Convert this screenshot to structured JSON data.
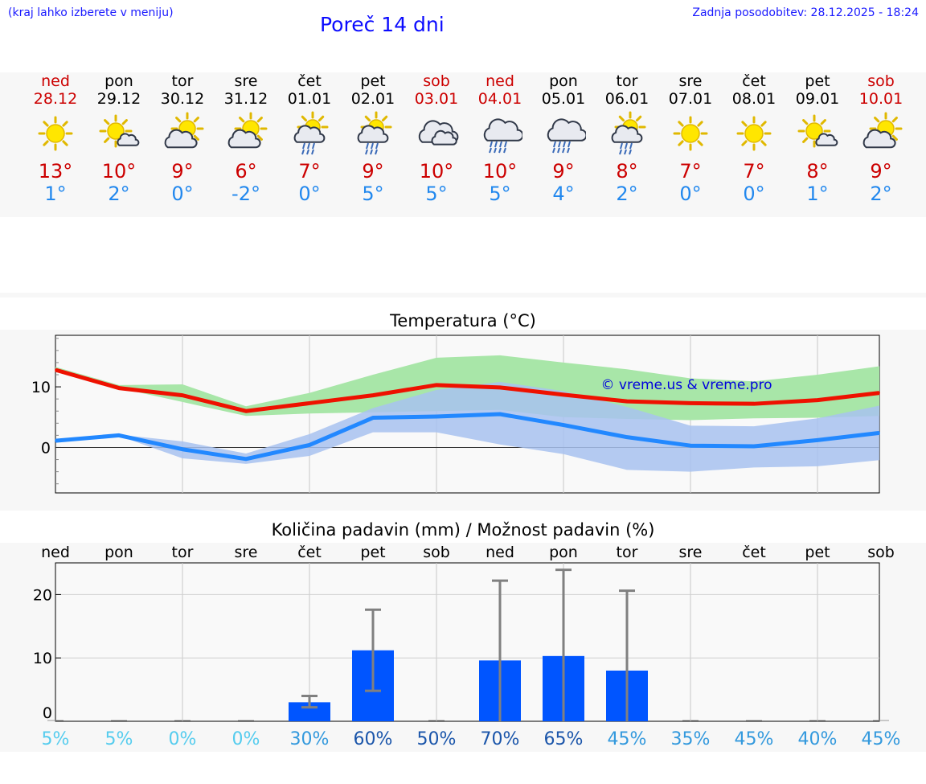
{
  "header": {
    "hint": "(kraj lahko izberete v meniju)",
    "title": "Poreč 14 dni",
    "updated": "Zadnja posodobitev: 28.12.2025 - 18:24"
  },
  "days": [
    {
      "name": "ned",
      "date": "28.12",
      "weekend": true,
      "icon": "sun-icon",
      "max": "13°",
      "min": "1°"
    },
    {
      "name": "pon",
      "date": "29.12",
      "weekend": false,
      "icon": "sun-cloud-icon",
      "max": "10°",
      "min": "2°"
    },
    {
      "name": "tor",
      "date": "30.12",
      "weekend": false,
      "icon": "cloud-sun-icon",
      "max": "9°",
      "min": "0°"
    },
    {
      "name": "sre",
      "date": "31.12",
      "weekend": false,
      "icon": "cloud-sun-icon",
      "max": "6°",
      "min": "-2°"
    },
    {
      "name": "čet",
      "date": "01.01",
      "weekend": false,
      "icon": "sun-cloud-rain-icon",
      "max": "7°",
      "min": "0°"
    },
    {
      "name": "pet",
      "date": "02.01",
      "weekend": false,
      "icon": "sun-cloud-rain-icon",
      "max": "9°",
      "min": "5°"
    },
    {
      "name": "sob",
      "date": "03.01",
      "weekend": true,
      "icon": "cloud-icon",
      "max": "10°",
      "min": "5°"
    },
    {
      "name": "ned",
      "date": "04.01",
      "weekend": true,
      "icon": "cloud-rain-icon",
      "max": "10°",
      "min": "5°"
    },
    {
      "name": "pon",
      "date": "05.01",
      "weekend": false,
      "icon": "cloud-rain-icon",
      "max": "9°",
      "min": "4°"
    },
    {
      "name": "tor",
      "date": "06.01",
      "weekend": false,
      "icon": "sun-cloud-rain-icon",
      "max": "8°",
      "min": "2°"
    },
    {
      "name": "sre",
      "date": "07.01",
      "weekend": false,
      "icon": "sun-icon",
      "max": "7°",
      "min": "0°"
    },
    {
      "name": "čet",
      "date": "08.01",
      "weekend": false,
      "icon": "sun-icon",
      "max": "7°",
      "min": "0°"
    },
    {
      "name": "pet",
      "date": "09.01",
      "weekend": false,
      "icon": "sun-cloud-icon",
      "max": "8°",
      "min": "1°"
    },
    {
      "name": "sob",
      "date": "10.01",
      "weekend": true,
      "icon": "cloud-sun-icon",
      "max": "9°",
      "min": "2°"
    }
  ],
  "colors": {
    "max": "#ee1100",
    "min": "#2288ff",
    "max_band": "#a8e6a8",
    "min_band": "#a8c2f0",
    "bar": "#0055ff",
    "error": "#808080"
  },
  "chart_data": [
    {
      "type": "line",
      "title": "Temperatura (°C)",
      "watermark": "© vreme.us & vreme.pro",
      "ylim": [
        -7.5,
        18.5
      ],
      "yticks": [
        0,
        10
      ],
      "x": [
        0,
        1,
        2,
        3,
        4,
        5,
        6,
        7,
        8,
        9,
        10,
        11,
        12,
        13
      ],
      "series": [
        {
          "name": "max",
          "values": [
            12.8,
            9.8,
            8.6,
            6.0,
            7.3,
            8.6,
            10.3,
            9.9,
            8.7,
            7.6,
            7.3,
            7.2,
            7.8,
            9.0
          ]
        },
        {
          "name": "min",
          "values": [
            1.1,
            2.0,
            -0.3,
            -1.9,
            0.4,
            4.9,
            5.1,
            5.5,
            3.7,
            1.7,
            0.3,
            0.2,
            1.2,
            2.4
          ]
        }
      ],
      "bands": [
        {
          "name": "max-range",
          "low": [
            12.6,
            9.8,
            7.5,
            5.2,
            5.6,
            5.8,
            6.0,
            6.2,
            5.0,
            4.7,
            4.5,
            4.8,
            4.9,
            5.2
          ],
          "high": [
            13.3,
            10.3,
            10.4,
            6.8,
            9.0,
            12.0,
            14.8,
            15.2,
            14.0,
            12.9,
            11.4,
            10.9,
            12.0,
            13.4
          ]
        },
        {
          "name": "min-range",
          "low": [
            0.9,
            1.9,
            -1.8,
            -2.7,
            -1.4,
            2.5,
            2.5,
            0.5,
            -1.1,
            -3.7,
            -4.0,
            -3.3,
            -3.1,
            -2.1
          ],
          "high": [
            1.2,
            2.1,
            1.0,
            -1.0,
            2.2,
            6.5,
            9.5,
            10.8,
            9.3,
            6.7,
            3.6,
            3.5,
            4.8,
            6.9
          ]
        }
      ]
    },
    {
      "type": "bar",
      "title": "Količina padavin (mm) / Možnost padavin (%)",
      "categories": [
        "ned",
        "pon",
        "tor",
        "sre",
        "čet",
        "pet",
        "sob",
        "ned",
        "pon",
        "tor",
        "sre",
        "čet",
        "pet",
        "sob"
      ],
      "ylim": [
        0,
        25
      ],
      "yticks": [
        0,
        10,
        20
      ],
      "values": [
        0,
        0,
        0,
        0,
        3.0,
        11.2,
        0,
        9.6,
        10.3,
        8.0,
        0,
        0,
        0,
        0
      ],
      "error_low": [
        0,
        0,
        0,
        0,
        2.2,
        4.8,
        0,
        0,
        0,
        0,
        0,
        0,
        0,
        0
      ],
      "error_high": [
        0,
        0,
        0,
        0,
        4.0,
        17.6,
        0,
        22.2,
        23.9,
        20.6,
        0,
        0,
        0,
        0
      ],
      "probabilities": [
        "5%",
        "5%",
        "0%",
        "0%",
        "30%",
        "60%",
        "50%",
        "70%",
        "65%",
        "45%",
        "35%",
        "45%",
        "40%",
        "45%"
      ],
      "probability_colors": [
        "#55ccee",
        "#55ccee",
        "#55ccee",
        "#55ccee",
        "#3399dd",
        "#1a55aa",
        "#1a55aa",
        "#1a55aa",
        "#1a55aa",
        "#3399dd",
        "#3399dd",
        "#3399dd",
        "#3399dd",
        "#3399dd"
      ]
    }
  ]
}
